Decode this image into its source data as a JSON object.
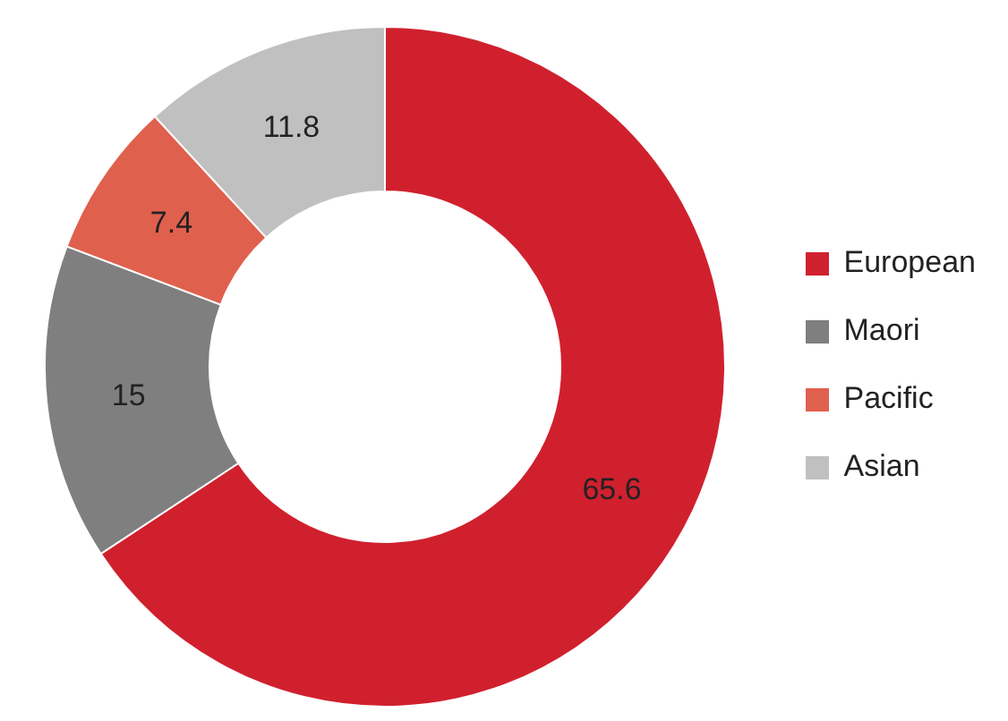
{
  "chart_data": {
    "type": "donut",
    "categories": [
      "European",
      "Maori",
      "Pacific",
      "Asian"
    ],
    "values": [
      65.6,
      15,
      7.4,
      11.8
    ],
    "colors": [
      "#d0202e",
      "#7f7f7f",
      "#e0604e",
      "#c0c0c0"
    ],
    "data_labels": true,
    "legend": "right"
  }
}
